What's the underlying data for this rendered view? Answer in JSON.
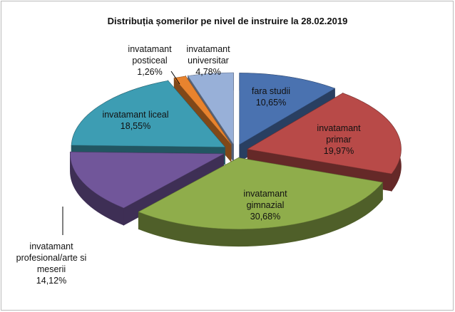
{
  "chart_data": {
    "type": "pie",
    "title": "Distribuția șomerilor pe nivel de  instruire la 28.02.2019",
    "categories": [
      "fara studii",
      "invatamant primar",
      "invatamant gimnazial",
      "invatamant profesional/arte si meserii",
      "invatamant liceal",
      "invatamant posticeal",
      "invatamant universitar"
    ],
    "values": [
      10.65,
      19.97,
      30.68,
      14.12,
      18.55,
      1.26,
      4.78
    ],
    "value_labels": [
      "10,65%",
      "19,97%",
      "30,68%",
      "14,12%",
      "18,55%",
      "1,26%",
      "4,78%"
    ],
    "colors": [
      "#4a72b0",
      "#b84a48",
      "#8fad4b",
      "#71569a",
      "#3d9db3",
      "#e8832e",
      "#98b0d8"
    ]
  }
}
